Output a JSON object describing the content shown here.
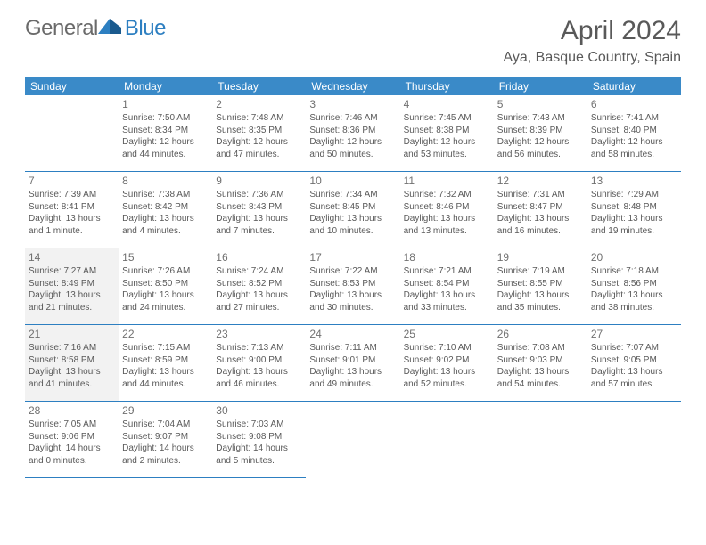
{
  "logo": {
    "general": "General",
    "blue": "Blue"
  },
  "title": "April 2024",
  "location": "Aya, Basque Country, Spain",
  "weekdays": [
    "Sunday",
    "Monday",
    "Tuesday",
    "Wednesday",
    "Thursday",
    "Friday",
    "Saturday"
  ],
  "colors": {
    "header_bar": "#3a8ac8",
    "border": "#2d7fc1",
    "text": "#595959",
    "shaded_bg": "#f2f2f2",
    "logo_gray": "#6a6a6a",
    "logo_blue": "#2d7fc1"
  },
  "start_weekday_index": 1,
  "shaded_days": [
    14,
    21
  ],
  "days": [
    {
      "n": 1,
      "sunrise": "7:50 AM",
      "sunset": "8:34 PM",
      "daylight": "12 hours and 44 minutes."
    },
    {
      "n": 2,
      "sunrise": "7:48 AM",
      "sunset": "8:35 PM",
      "daylight": "12 hours and 47 minutes."
    },
    {
      "n": 3,
      "sunrise": "7:46 AM",
      "sunset": "8:36 PM",
      "daylight": "12 hours and 50 minutes."
    },
    {
      "n": 4,
      "sunrise": "7:45 AM",
      "sunset": "8:38 PM",
      "daylight": "12 hours and 53 minutes."
    },
    {
      "n": 5,
      "sunrise": "7:43 AM",
      "sunset": "8:39 PM",
      "daylight": "12 hours and 56 minutes."
    },
    {
      "n": 6,
      "sunrise": "7:41 AM",
      "sunset": "8:40 PM",
      "daylight": "12 hours and 58 minutes."
    },
    {
      "n": 7,
      "sunrise": "7:39 AM",
      "sunset": "8:41 PM",
      "daylight": "13 hours and 1 minute."
    },
    {
      "n": 8,
      "sunrise": "7:38 AM",
      "sunset": "8:42 PM",
      "daylight": "13 hours and 4 minutes."
    },
    {
      "n": 9,
      "sunrise": "7:36 AM",
      "sunset": "8:43 PM",
      "daylight": "13 hours and 7 minutes."
    },
    {
      "n": 10,
      "sunrise": "7:34 AM",
      "sunset": "8:45 PM",
      "daylight": "13 hours and 10 minutes."
    },
    {
      "n": 11,
      "sunrise": "7:32 AM",
      "sunset": "8:46 PM",
      "daylight": "13 hours and 13 minutes."
    },
    {
      "n": 12,
      "sunrise": "7:31 AM",
      "sunset": "8:47 PM",
      "daylight": "13 hours and 16 minutes."
    },
    {
      "n": 13,
      "sunrise": "7:29 AM",
      "sunset": "8:48 PM",
      "daylight": "13 hours and 19 minutes."
    },
    {
      "n": 14,
      "sunrise": "7:27 AM",
      "sunset": "8:49 PM",
      "daylight": "13 hours and 21 minutes."
    },
    {
      "n": 15,
      "sunrise": "7:26 AM",
      "sunset": "8:50 PM",
      "daylight": "13 hours and 24 minutes."
    },
    {
      "n": 16,
      "sunrise": "7:24 AM",
      "sunset": "8:52 PM",
      "daylight": "13 hours and 27 minutes."
    },
    {
      "n": 17,
      "sunrise": "7:22 AM",
      "sunset": "8:53 PM",
      "daylight": "13 hours and 30 minutes."
    },
    {
      "n": 18,
      "sunrise": "7:21 AM",
      "sunset": "8:54 PM",
      "daylight": "13 hours and 33 minutes."
    },
    {
      "n": 19,
      "sunrise": "7:19 AM",
      "sunset": "8:55 PM",
      "daylight": "13 hours and 35 minutes."
    },
    {
      "n": 20,
      "sunrise": "7:18 AM",
      "sunset": "8:56 PM",
      "daylight": "13 hours and 38 minutes."
    },
    {
      "n": 21,
      "sunrise": "7:16 AM",
      "sunset": "8:58 PM",
      "daylight": "13 hours and 41 minutes."
    },
    {
      "n": 22,
      "sunrise": "7:15 AM",
      "sunset": "8:59 PM",
      "daylight": "13 hours and 44 minutes."
    },
    {
      "n": 23,
      "sunrise": "7:13 AM",
      "sunset": "9:00 PM",
      "daylight": "13 hours and 46 minutes."
    },
    {
      "n": 24,
      "sunrise": "7:11 AM",
      "sunset": "9:01 PM",
      "daylight": "13 hours and 49 minutes."
    },
    {
      "n": 25,
      "sunrise": "7:10 AM",
      "sunset": "9:02 PM",
      "daylight": "13 hours and 52 minutes."
    },
    {
      "n": 26,
      "sunrise": "7:08 AM",
      "sunset": "9:03 PM",
      "daylight": "13 hours and 54 minutes."
    },
    {
      "n": 27,
      "sunrise": "7:07 AM",
      "sunset": "9:05 PM",
      "daylight": "13 hours and 57 minutes."
    },
    {
      "n": 28,
      "sunrise": "7:05 AM",
      "sunset": "9:06 PM",
      "daylight": "14 hours and 0 minutes."
    },
    {
      "n": 29,
      "sunrise": "7:04 AM",
      "sunset": "9:07 PM",
      "daylight": "14 hours and 2 minutes."
    },
    {
      "n": 30,
      "sunrise": "7:03 AM",
      "sunset": "9:08 PM",
      "daylight": "14 hours and 5 minutes."
    }
  ],
  "labels": {
    "sunrise": "Sunrise:",
    "sunset": "Sunset:",
    "daylight": "Daylight:"
  }
}
